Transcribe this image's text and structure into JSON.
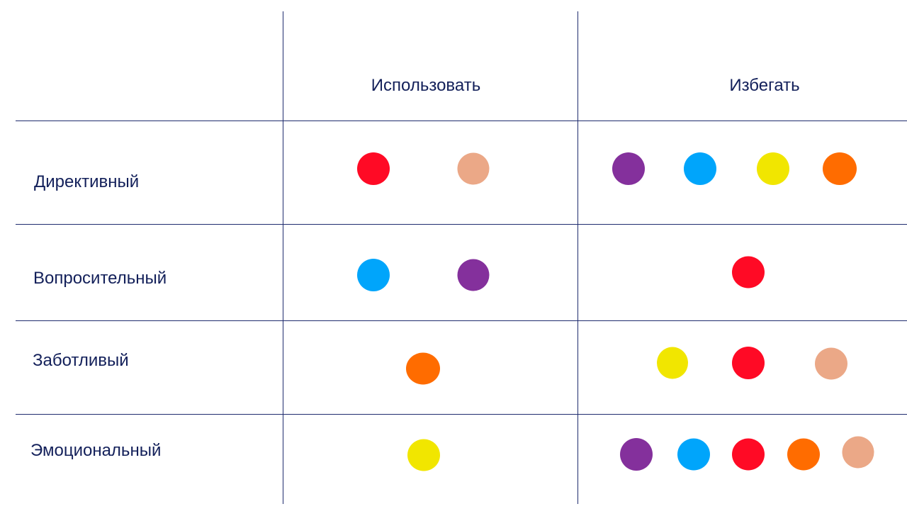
{
  "colors": {
    "line": "#1f2c6e",
    "text": "#13205a",
    "red": "#ff0a25",
    "peach": "#eba887",
    "purple": "#84309c",
    "blue": "#00a5fb",
    "yellow": "#f1e600",
    "orange": "#ff6c00"
  },
  "columns": {
    "use": "Использовать",
    "avoid": "Избегать"
  },
  "rows": [
    {
      "label": "Директивный",
      "use": [
        "red",
        "peach"
      ],
      "avoid": [
        "purple",
        "blue",
        "yellow",
        "orange"
      ]
    },
    {
      "label": "Вопросительный",
      "use": [
        "blue",
        "purple"
      ],
      "avoid": [
        "red"
      ]
    },
    {
      "label": "Заботливый",
      "use": [
        "orange"
      ],
      "avoid": [
        "yellow",
        "red",
        "peach"
      ]
    },
    {
      "label": "Эмоциональный",
      "use": [
        "yellow"
      ],
      "avoid": [
        "purple",
        "blue",
        "red",
        "orange",
        "peach"
      ]
    }
  ]
}
